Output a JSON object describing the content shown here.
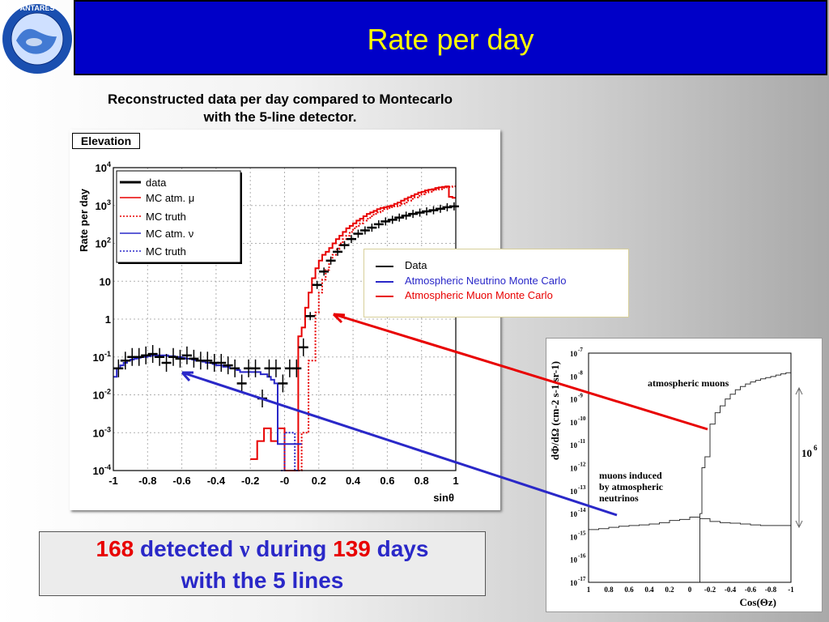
{
  "header": {
    "title": "Rate per day"
  },
  "logo": {
    "text": "ANTARES",
    "icon": "antares-logo-icon"
  },
  "subtitle": {
    "line1": "Reconstructed data per day compared to Montecarlo",
    "line2": "with the 5-line detector."
  },
  "colors": {
    "header_bg": "#0000c8",
    "title": "#ffff00",
    "data": "#000000",
    "muon": "#e80000",
    "neutrino": "#2a28c8"
  },
  "elevation_label": "Elevation",
  "legend2": {
    "data": "Data",
    "nu": "Atmospheric Neutrino Monte Carlo",
    "mu": "Atmospheric Muon Monte Carlo"
  },
  "result": {
    "n_detected": "168",
    "t_detected": " detected ",
    "nu_symbol": "ν",
    "t_during": " during ",
    "n_days": "139",
    "t_days": " days",
    "line2": "with the 5 lines"
  },
  "chart_data": [
    {
      "type": "line",
      "scale_y": "log",
      "xlabel": "sinθ",
      "ylabel": "Rate per day",
      "xlim": [
        -1,
        1
      ],
      "ylim": [
        0.0001,
        10000
      ],
      "x_ticks": [
        "-1",
        "-0.8",
        "-0.6",
        "-0.4",
        "-0.2",
        "-0",
        "0.2",
        "0.4",
        "0.6",
        "0.8",
        "1"
      ],
      "y_ticks": [
        {
          "base": "10",
          "exp": "-4"
        },
        {
          "base": "10",
          "exp": "-3"
        },
        {
          "base": "10",
          "exp": "-2"
        },
        {
          "base": "10",
          "exp": "-1"
        },
        {
          "base": "1",
          "exp": ""
        },
        {
          "base": "10",
          "exp": ""
        },
        {
          "base": "10",
          "exp": "2"
        },
        {
          "base": "10",
          "exp": "3"
        },
        {
          "base": "10",
          "exp": "4"
        }
      ],
      "legend": [
        "data",
        "MC atm. μ",
        "MC truth",
        "MC atm. ν",
        "MC truth"
      ],
      "series": [
        {
          "name": "MC atm. μ",
          "color": "#e80000",
          "style": "step",
          "x": [
            -0.2,
            -0.18,
            -0.16,
            -0.14,
            -0.12,
            -0.1,
            -0.08,
            -0.06,
            -0.04,
            -0.02,
            0,
            0.02,
            0.04,
            0.06,
            0.08,
            0.1,
            0.12,
            0.14,
            0.16,
            0.18,
            0.2,
            0.22,
            0.24,
            0.26,
            0.28,
            0.3,
            0.32,
            0.34,
            0.36,
            0.38,
            0.4,
            0.42,
            0.44,
            0.46,
            0.48,
            0.5,
            0.52,
            0.54,
            0.56,
            0.58,
            0.6,
            0.62,
            0.64,
            0.66,
            0.68,
            0.7,
            0.72,
            0.74,
            0.76,
            0.78,
            0.8,
            0.82,
            0.84,
            0.86,
            0.88,
            0.9,
            0.92,
            0.94,
            0.96,
            0.98
          ],
          "y": [
            0.0002,
            0.0002,
            0.0006,
            0.0006,
            0.0013,
            0.0013,
            0.0006,
            0.0006,
            0.0013,
            0.0013,
            0.0001,
            0.0001,
            0.0001,
            0.0001,
            0.35,
            0.6,
            2,
            5,
            12,
            22,
            35,
            50,
            60,
            75,
            100,
            130,
            160,
            200,
            250,
            290,
            340,
            400,
            450,
            520,
            600,
            660,
            720,
            800,
            860,
            900,
            950,
            1000,
            1100,
            1200,
            1350,
            1500,
            1650,
            1800,
            2000,
            2200,
            2300,
            2500,
            2600,
            2700,
            2900,
            3000,
            3100,
            3200,
            1700,
            1600
          ]
        },
        {
          "name": "MC truth",
          "color": "#e80000",
          "style": "dotted-step",
          "x": [
            0.08,
            0.1,
            0.12,
            0.14,
            0.16,
            0.18,
            0.2,
            0.22,
            0.24,
            0.26,
            0.28,
            0.3,
            0.32,
            0.34,
            0.36,
            0.38,
            0.4,
            0.42,
            0.44,
            0.46,
            0.48,
            0.5,
            0.52,
            0.54,
            0.56,
            0.58,
            0.6,
            0.62,
            0.64,
            0.66,
            0.68,
            0.7,
            0.72,
            0.74,
            0.76,
            0.78,
            0.8,
            0.82,
            0.84,
            0.86,
            0.88,
            0.9,
            0.92,
            0.94,
            0.96,
            0.98
          ],
          "y": [
            0.0001,
            0.001,
            0.001,
            0.08,
            0.08,
            1.5,
            5,
            11,
            20,
            35,
            50,
            70,
            100,
            130,
            160,
            200,
            250,
            290,
            340,
            400,
            450,
            520,
            600,
            660,
            720,
            800,
            860,
            900,
            950,
            1000,
            1100,
            1200,
            1350,
            1500,
            1650,
            1800,
            2000,
            2200,
            2300,
            2500,
            2600,
            2700,
            2900,
            3000,
            3100,
            3200
          ]
        },
        {
          "name": "MC atm. ν",
          "color": "#2a28c8",
          "style": "step",
          "x": [
            -1,
            -0.98,
            -0.96,
            -0.94,
            -0.92,
            -0.9,
            -0.88,
            -0.86,
            -0.84,
            -0.82,
            -0.8,
            -0.78,
            -0.76,
            -0.74,
            -0.72,
            -0.7,
            -0.68,
            -0.66,
            -0.64,
            -0.62,
            -0.6,
            -0.58,
            -0.56,
            -0.54,
            -0.52,
            -0.5,
            -0.48,
            -0.46,
            -0.44,
            -0.42,
            -0.4,
            -0.38,
            -0.36,
            -0.34,
            -0.32,
            -0.3,
            -0.28,
            -0.26,
            -0.24,
            -0.22,
            -0.2,
            -0.18,
            -0.16,
            -0.14,
            -0.12,
            -0.1,
            -0.08,
            -0.06,
            -0.04,
            -0.02,
            0,
            0.02,
            0.04,
            0.06,
            0.08
          ],
          "y": [
            0.03,
            0.05,
            0.06,
            0.07,
            0.08,
            0.085,
            0.09,
            0.095,
            0.1,
            0.1,
            0.105,
            0.11,
            0.11,
            0.11,
            0.11,
            0.11,
            0.105,
            0.105,
            0.1,
            0.1,
            0.095,
            0.09,
            0.09,
            0.085,
            0.08,
            0.08,
            0.075,
            0.07,
            0.07,
            0.065,
            0.06,
            0.06,
            0.055,
            0.055,
            0.05,
            0.05,
            0.045,
            0.04,
            0.04,
            0.04,
            0.04,
            0.04,
            0.04,
            0.035,
            0.035,
            0.03,
            0.025,
            0.02,
            0.0005,
            0.0005,
            0.0005,
            0.0005,
            0.0005,
            0.0005,
            0.0005
          ]
        },
        {
          "name": "MC truth",
          "color": "#2a28c8",
          "style": "dotted-step",
          "x": [
            -0.02,
            0,
            0.02,
            0.04,
            0.06
          ],
          "y": [
            0.0001,
            0.001,
            0.001,
            0.001,
            0.0001
          ]
        },
        {
          "name": "data",
          "color": "#000000",
          "style": "points",
          "x": [
            -0.97,
            -0.93,
            -0.89,
            -0.85,
            -0.81,
            -0.77,
            -0.73,
            -0.69,
            -0.65,
            -0.61,
            -0.57,
            -0.53,
            -0.49,
            -0.45,
            -0.41,
            -0.37,
            -0.33,
            -0.29,
            -0.25,
            -0.21,
            -0.17,
            -0.13,
            -0.09,
            -0.05,
            -0.01,
            0.03,
            0.07,
            0.11,
            0.15,
            0.19,
            0.23,
            0.27,
            0.31,
            0.35,
            0.39,
            0.43,
            0.47,
            0.51,
            0.55,
            0.59,
            0.63,
            0.67,
            0.71,
            0.75,
            0.79,
            0.83,
            0.87,
            0.91,
            0.95,
            0.99
          ],
          "y": [
            0.05,
            0.08,
            0.1,
            0.1,
            0.11,
            0.12,
            0.1,
            0.07,
            0.1,
            0.09,
            0.11,
            0.09,
            0.08,
            0.08,
            0.07,
            0.07,
            0.06,
            0.05,
            0.02,
            0.05,
            0.05,
            0.008,
            0.05,
            0.05,
            0.02,
            0.05,
            0.05,
            0.18,
            1.2,
            8,
            18,
            35,
            60,
            90,
            130,
            180,
            220,
            260,
            320,
            380,
            420,
            480,
            540,
            600,
            650,
            700,
            750,
            820,
            900,
            950
          ]
        }
      ]
    },
    {
      "type": "line",
      "scale_y": "log",
      "xlabel": "Cos(Θz)",
      "ylabel": "dΦ/dΩ (cm-2 s-1 sr-1)",
      "x_ticks": [
        "1",
        "0.8",
        "0.6",
        "0.4",
        "0.2",
        "0",
        "-0.2",
        "-0.4",
        "-0.6",
        "-0.8",
        "-1"
      ],
      "y_ticks": [
        {
          "base": "10",
          "exp": "-7"
        },
        {
          "base": "10",
          "exp": "-8"
        },
        {
          "base": "10",
          "exp": "-9"
        },
        {
          "base": "10",
          "exp": "-10"
        },
        {
          "base": "10",
          "exp": "-11"
        },
        {
          "base": "10",
          "exp": "-12"
        },
        {
          "base": "10",
          "exp": "-13"
        },
        {
          "base": "10",
          "exp": "-14"
        },
        {
          "base": "10",
          "exp": "-15"
        },
        {
          "base": "10",
          "exp": "-16"
        },
        {
          "base": "10",
          "exp": "-17"
        }
      ],
      "annotations": {
        "muons": "atmospheric muons",
        "nu1": "muons induced",
        "nu2": "by atmospheric",
        "nu3": "neutrinos",
        "ratio_base": "10",
        "ratio_exp": "6"
      },
      "series": [
        {
          "name": "atmospheric muons",
          "style": "step",
          "x": [
            -0.1,
            -0.12,
            -0.15,
            -0.2,
            -0.25,
            -0.3,
            -0.35,
            -0.4,
            -0.45,
            -0.5,
            -0.55,
            -0.6,
            -0.65,
            -0.7,
            -0.75,
            -0.8,
            -0.85,
            -0.9,
            -0.95,
            -1
          ],
          "y": [
            1e-14,
            1e-12,
            3e-12,
            8e-11,
            2.5e-10,
            5e-10,
            1e-09,
            1.6e-09,
            2.5e-09,
            3.5e-09,
            4.5e-09,
            5.5e-09,
            6.5e-09,
            7.5e-09,
            8.5e-09,
            9.5e-09,
            1.1e-08,
            1.25e-08,
            1.4e-08,
            1.5e-08
          ]
        },
        {
          "name": "muons induced by atmospheric neutrinos",
          "style": "step",
          "x": [
            1,
            0.9,
            0.8,
            0.7,
            0.6,
            0.5,
            0.4,
            0.3,
            0.2,
            0.1,
            0,
            -0.1,
            -0.2,
            -0.3,
            -0.4,
            -0.5,
            -0.6,
            -0.7,
            -0.8,
            -0.9,
            -1
          ],
          "y": [
            2e-15,
            2.2e-15,
            2.5e-15,
            2.8e-15,
            3e-15,
            3.2e-15,
            3.5e-15,
            4e-15,
            5e-15,
            5.5e-15,
            7e-15,
            6e-15,
            4.5e-15,
            4e-15,
            3.8e-15,
            3.5e-15,
            3.2e-15,
            3e-15,
            3e-15,
            3e-15,
            3e-15
          ]
        }
      ]
    }
  ]
}
